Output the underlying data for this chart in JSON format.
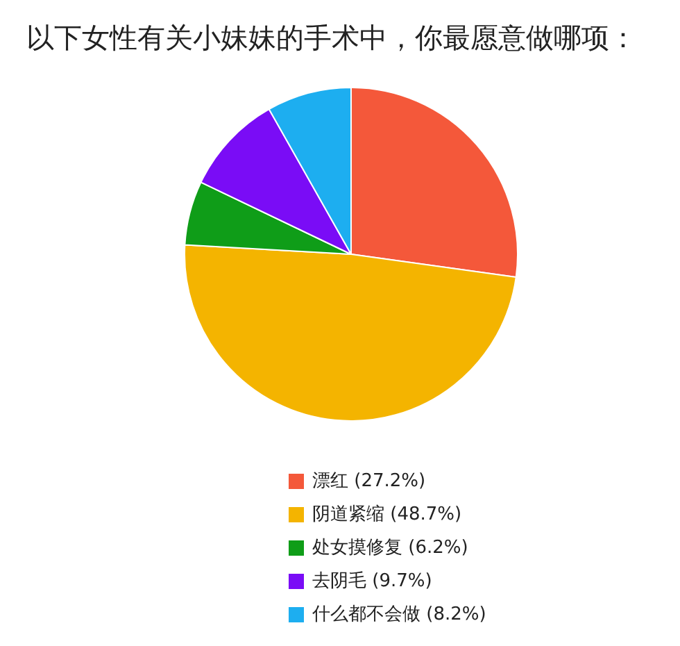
{
  "chart_data": {
    "type": "pie",
    "title": "以下女性有关小妹妹的手术中，你最愿意做哪项：",
    "categories": [
      "漂红 (27.2%)",
      "阴道紧缩 (48.7%)",
      "处女摸修复 (6.2%)",
      "去阴毛 (9.7%)",
      "什么都不会做 (8.2%)"
    ],
    "values": [
      27.2,
      48.7,
      6.2,
      9.7,
      8.2
    ],
    "colors": [
      "#f4583a",
      "#f4b400",
      "#0f9d18",
      "#7a0cf6",
      "#1daef0"
    ],
    "legend": "bottom"
  }
}
